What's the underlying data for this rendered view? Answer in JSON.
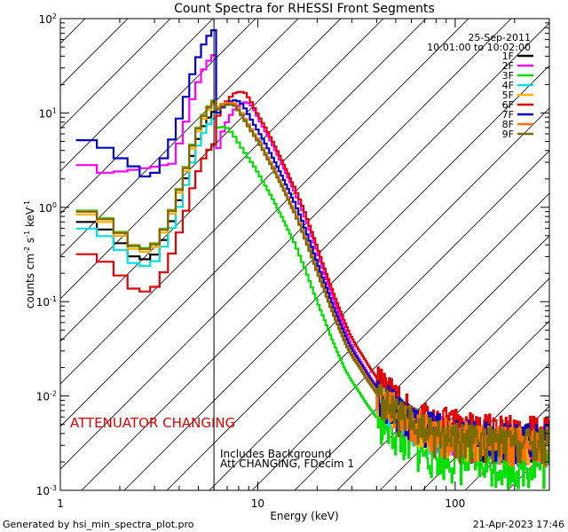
{
  "chart_data": {
    "type": "line",
    "title": "Count Spectra for RHESSI Front Segments",
    "xlabel": "Energy (keV)",
    "ylabel_parts": {
      "a": "counts cm",
      "b": "-2",
      "c": " s",
      "d": "-1",
      "e": " keV",
      "f": "-1"
    },
    "x_scale": "log",
    "y_scale": "log",
    "xlim": [
      1,
      300
    ],
    "ylim": [
      0.001,
      100
    ],
    "x_ticks": [
      {
        "value": 1,
        "label": "1"
      },
      {
        "value": 10,
        "label": "10"
      },
      {
        "value": 100,
        "label": "100"
      }
    ],
    "y_ticks": [
      {
        "value": 0.001,
        "base": "10",
        "exp": "-3"
      },
      {
        "value": 0.01,
        "base": "10",
        "exp": "-2"
      },
      {
        "value": 0.1,
        "base": "10",
        "exp": "-1"
      },
      {
        "value": 1,
        "base": "10",
        "exp": "0"
      },
      {
        "value": 10,
        "base": "10",
        "exp": "1"
      },
      {
        "value": 100,
        "base": "10",
        "exp": "2"
      }
    ],
    "date_label": "25-Sep-2011",
    "time_range": "10:01:00 to 10:02:00",
    "attenuator_text": "ATTENUATOR CHANGING",
    "note_line1": "Includes Background",
    "note_line2": "Att CHANGING, FDecim 1",
    "hatched_region_xmax": 6.0,
    "series": [
      {
        "name": "1F",
        "color": "#000000"
      },
      {
        "name": "2F",
        "color": "#ff00ff"
      },
      {
        "name": "3F",
        "color": "#00e000"
      },
      {
        "name": "4F",
        "color": "#00e0e0"
      },
      {
        "name": "5F",
        "color": "#ffb000"
      },
      {
        "name": "6F",
        "color": "#e00000"
      },
      {
        "name": "7F",
        "color": "#0000c8"
      },
      {
        "name": "8F",
        "color": "#ff7000"
      },
      {
        "name": "9F",
        "color": "#7a6a00"
      }
    ],
    "reference_curve": {
      "energies": [
        1.2,
        1.4,
        1.6,
        1.8,
        2.0,
        2.2,
        2.5,
        2.8,
        3.1,
        3.5,
        4.0,
        4.5,
        5.0,
        5.5,
        6.0,
        6.5,
        7.0,
        7.5,
        8.0,
        8.5,
        9.0,
        10,
        11,
        12,
        13,
        14,
        15,
        16,
        17,
        18,
        19,
        20,
        22,
        24,
        26,
        28,
        30,
        33,
        36,
        40,
        45,
        50,
        55,
        60,
        70,
        80,
        90,
        100,
        120,
        140,
        160,
        180,
        200,
        230,
        260,
        300
      ],
      "counts": [
        0.7,
        0.65,
        0.55,
        0.45,
        0.35,
        0.3,
        0.28,
        0.3,
        0.4,
        0.7,
        1.5,
        3.5,
        6.5,
        9.0,
        11.0,
        12.5,
        13.0,
        12.5,
        10.5,
        8.5,
        7.0,
        5.0,
        3.5,
        2.5,
        1.8,
        1.3,
        0.95,
        0.7,
        0.5,
        0.37,
        0.27,
        0.2,
        0.12,
        0.075,
        0.05,
        0.035,
        0.027,
        0.02,
        0.015,
        0.011,
        0.0085,
        0.007,
        0.006,
        0.0053,
        0.0046,
        0.0042,
        0.004,
        0.0038,
        0.0036,
        0.0035,
        0.0034,
        0.0033,
        0.0033,
        0.0033,
        0.0033,
        0.0032
      ]
    },
    "series_scale": [
      1.0,
      1.0,
      0.55,
      1.0,
      1.0,
      1.3,
      1.05,
      1.0,
      0.95
    ],
    "series_low_scale": [
      1.0,
      4.0,
      2.4,
      0.85,
      1.2,
      0.35,
      7.0,
      1.3,
      1.35
    ],
    "series_shift_keV": [
      0,
      1.5,
      -0.6,
      0,
      0,
      1.0,
      0.5,
      0,
      0
    ]
  },
  "footer": {
    "generated_by": "Generated by hsi_min_spectra_plot.pro",
    "timestamp": "21-Apr-2023 17:46"
  }
}
